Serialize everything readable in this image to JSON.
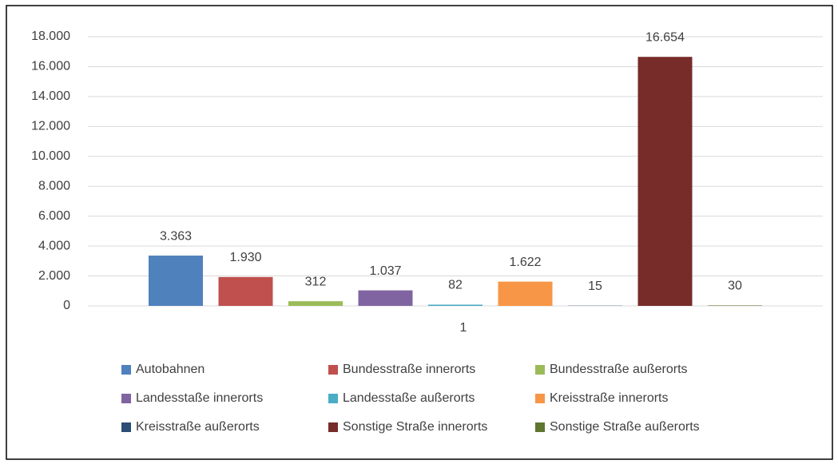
{
  "chart_data": {
    "type": "bar",
    "categories": [
      "1"
    ],
    "series": [
      {
        "name": "Autobahnen",
        "color": "#4f81bd",
        "values": [
          3363
        ],
        "value_labels": [
          "3.363"
        ]
      },
      {
        "name": "Bundesstraße innerorts",
        "color": "#c0504d",
        "values": [
          1930
        ],
        "value_labels": [
          "1.930"
        ]
      },
      {
        "name": "Bundesstraße außerorts",
        "color": "#9bbb59",
        "values": [
          312
        ],
        "value_labels": [
          "312"
        ]
      },
      {
        "name": "Landesstaße innerorts",
        "color": "#8064a2",
        "values": [
          1037
        ],
        "value_labels": [
          "1.037"
        ]
      },
      {
        "name": "Landesstaße außerorts",
        "color": "#4bacc6",
        "values": [
          82
        ],
        "value_labels": [
          "82"
        ]
      },
      {
        "name": "Kreisstraße innerorts",
        "color": "#f79646",
        "values": [
          1622
        ],
        "value_labels": [
          "1.622"
        ]
      },
      {
        "name": "Kreisstraße außerorts",
        "color": "#2c4d75",
        "values": [
          15
        ],
        "value_labels": [
          "15"
        ]
      },
      {
        "name": "Sonstige Straße innerorts",
        "color": "#772c2a",
        "values": [
          16654
        ],
        "value_labels": [
          "16.654"
        ]
      },
      {
        "name": "Sonstige Straße außerorts",
        "color": "#5f7530",
        "values": [
          30
        ],
        "value_labels": [
          "30"
        ]
      }
    ],
    "ylim": [
      0,
      18000
    ],
    "yticks": [
      0,
      {
        "value": 2000,
        "label": "2.000"
      },
      {
        "value": 4000,
        "label": "4.000"
      },
      {
        "value": 6000,
        "label": "6.000"
      },
      {
        "value": 8000,
        "label": "8.000"
      },
      {
        "value": 10000,
        "label": "10.000"
      },
      {
        "value": 12000,
        "label": "12.000"
      },
      {
        "value": 14000,
        "label": "14.000"
      },
      {
        "value": 16000,
        "label": "16.000"
      },
      {
        "value": 18000,
        "label": "18.000"
      }
    ],
    "grid": true,
    "legend": "bottom"
  }
}
